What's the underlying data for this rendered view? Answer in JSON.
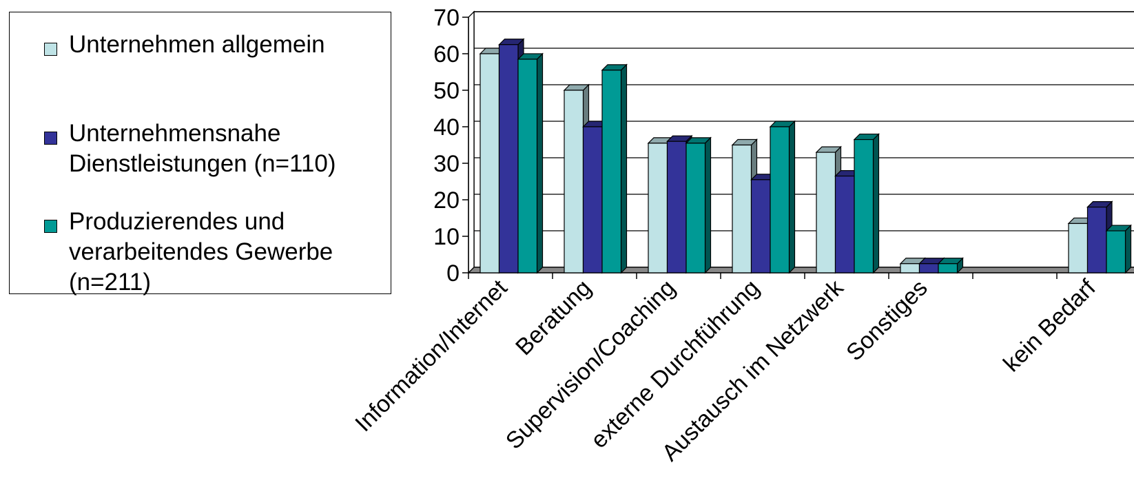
{
  "chart_data": {
    "type": "bar",
    "title": "",
    "xlabel": "",
    "ylabel": "",
    "ylim": [
      0,
      70
    ],
    "yticks": [
      "0",
      "10",
      "20",
      "30",
      "40",
      "50",
      "60",
      "70"
    ],
    "grid": true,
    "legend_position": "left",
    "categories": [
      "Information/Internet",
      "Beratung",
      "Supervision/Coaching",
      "externe Durchführung",
      "Austausch im Netzwerk",
      "Sonstiges",
      "",
      "kein Bedarf"
    ],
    "series": [
      {
        "name": "Unternehmen allgemein",
        "color": "#bfe3e6",
        "values": [
          60,
          50,
          35.5,
          35,
          33,
          2.5,
          0,
          13.5
        ]
      },
      {
        "name": "Unternehmensnahe\nDienstleistungen (n=110)",
        "color": "#333399",
        "values": [
          62.5,
          40,
          36,
          25.5,
          26.5,
          2.5,
          0,
          18
        ]
      },
      {
        "name": "Produzierendes und\nverarbeitendes Gewerbe\n(n=211)",
        "color": "#009a95",
        "values": [
          58.5,
          55.5,
          35.5,
          40,
          36.5,
          2.5,
          0,
          11.5
        ]
      }
    ]
  }
}
